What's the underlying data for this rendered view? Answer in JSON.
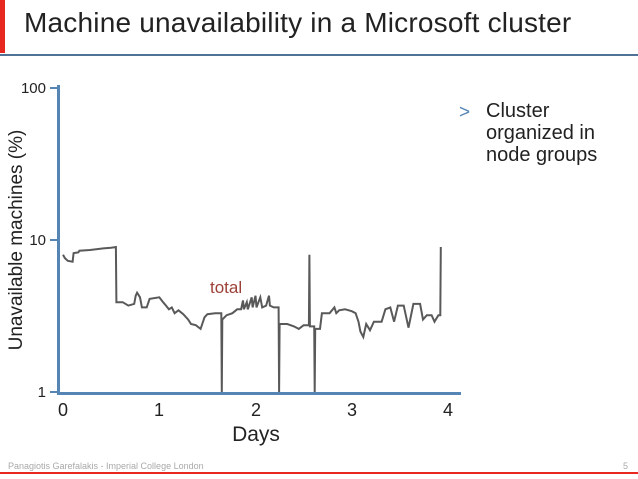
{
  "slide": {
    "title": "Machine unavailability in a Microsoft cluster",
    "bullet": {
      "marker": ">",
      "text": "Cluster organized in node groups"
    },
    "footer": {
      "author": "Panagiotis Garefalakis - Imperial College London",
      "page_number": "5"
    },
    "colors": {
      "accent_red": "#e8281e",
      "separator_blue": "#4f7397",
      "axis_blue": "#5585b5",
      "line_gray": "#595959",
      "series_label_red": "#9d4038",
      "footer_gray": "#a9a9a9",
      "text_black": "#222222"
    }
  },
  "chart_data": {
    "type": "line",
    "title": "",
    "xlabel": "Days",
    "ylabel": "Unavailable machines (%)",
    "x_tick_labels": [
      "0",
      "1",
      "2",
      "3",
      "4"
    ],
    "y_tick_labels": [
      "100",
      "10",
      "1"
    ],
    "y_ticks": [
      100,
      10,
      1
    ],
    "xlim": [
      0,
      4.17
    ],
    "ylim": [
      1,
      100
    ],
    "y_scale": "log",
    "grid": false,
    "legend": "inline-label",
    "series": [
      {
        "name": "total",
        "color": "#595959",
        "points": [
          [
            0.0,
            8.0
          ],
          [
            0.02,
            7.6
          ],
          [
            0.05,
            7.3
          ],
          [
            0.1,
            7.2
          ],
          [
            0.11,
            8.2
          ],
          [
            0.16,
            8.3
          ],
          [
            0.17,
            8.5
          ],
          [
            0.28,
            8.6
          ],
          [
            0.42,
            8.8
          ],
          [
            0.5,
            8.9
          ],
          [
            0.55,
            9.0
          ],
          [
            0.555,
            3.9
          ],
          [
            0.62,
            3.9
          ],
          [
            0.68,
            3.7
          ],
          [
            0.74,
            3.8
          ],
          [
            0.755,
            4.3
          ],
          [
            0.77,
            4.5
          ],
          [
            0.8,
            4.2
          ],
          [
            0.82,
            3.6
          ],
          [
            0.87,
            3.6
          ],
          [
            0.9,
            4.1
          ],
          [
            1.0,
            4.2
          ],
          [
            1.04,
            3.9
          ],
          [
            1.07,
            3.7
          ],
          [
            1.1,
            3.5
          ],
          [
            1.13,
            3.6
          ],
          [
            1.16,
            3.3
          ],
          [
            1.2,
            3.45
          ],
          [
            1.25,
            3.25
          ],
          [
            1.3,
            3.0
          ],
          [
            1.33,
            2.8
          ],
          [
            1.38,
            2.75
          ],
          [
            1.43,
            2.6
          ],
          [
            1.47,
            3.1
          ],
          [
            1.5,
            3.25
          ],
          [
            1.58,
            3.3
          ],
          [
            1.63,
            3.3
          ],
          [
            1.645,
            3.3
          ],
          [
            1.65,
            1.0
          ],
          [
            1.655,
            3.0
          ],
          [
            1.7,
            3.2
          ],
          [
            1.76,
            3.3
          ],
          [
            1.81,
            3.5
          ],
          [
            1.85,
            3.5
          ],
          [
            1.87,
            4.0
          ],
          [
            1.88,
            3.5
          ],
          [
            1.91,
            3.9
          ],
          [
            1.92,
            3.5
          ],
          [
            1.96,
            4.2
          ],
          [
            1.97,
            3.6
          ],
          [
            2.0,
            4.3
          ],
          [
            2.01,
            3.6
          ],
          [
            2.05,
            4.2
          ],
          [
            2.07,
            3.6
          ],
          [
            2.11,
            3.7
          ],
          [
            2.14,
            4.3
          ],
          [
            2.15,
            3.7
          ],
          [
            2.19,
            3.6
          ],
          [
            2.24,
            3.6
          ],
          [
            2.245,
            1.0
          ],
          [
            2.25,
            2.8
          ],
          [
            2.33,
            2.8
          ],
          [
            2.4,
            2.7
          ],
          [
            2.45,
            2.6
          ],
          [
            2.5,
            2.75
          ],
          [
            2.555,
            2.75
          ],
          [
            2.56,
            8.0
          ],
          [
            2.565,
            2.7
          ],
          [
            2.61,
            2.7
          ],
          [
            2.615,
            1.0
          ],
          [
            2.62,
            2.6
          ],
          [
            2.67,
            2.6
          ],
          [
            2.69,
            3.3
          ],
          [
            2.77,
            3.3
          ],
          [
            2.82,
            3.6
          ],
          [
            2.84,
            3.3
          ],
          [
            2.87,
            3.45
          ],
          [
            2.93,
            3.5
          ],
          [
            3.0,
            3.4
          ],
          [
            3.04,
            3.3
          ],
          [
            3.07,
            2.9
          ],
          [
            3.09,
            2.5
          ],
          [
            3.12,
            2.3
          ],
          [
            3.15,
            2.8
          ],
          [
            3.19,
            2.55
          ],
          [
            3.23,
            2.9
          ],
          [
            3.31,
            2.9
          ],
          [
            3.35,
            3.5
          ],
          [
            3.4,
            3.6
          ],
          [
            3.44,
            2.9
          ],
          [
            3.48,
            3.7
          ],
          [
            3.54,
            3.7
          ],
          [
            3.59,
            2.65
          ],
          [
            3.64,
            3.8
          ],
          [
            3.71,
            3.8
          ],
          [
            3.74,
            3.0
          ],
          [
            3.78,
            3.2
          ],
          [
            3.83,
            3.2
          ],
          [
            3.86,
            2.9
          ],
          [
            3.9,
            3.2
          ],
          [
            3.92,
            3.2
          ],
          [
            3.925,
            9.0
          ]
        ]
      }
    ]
  }
}
